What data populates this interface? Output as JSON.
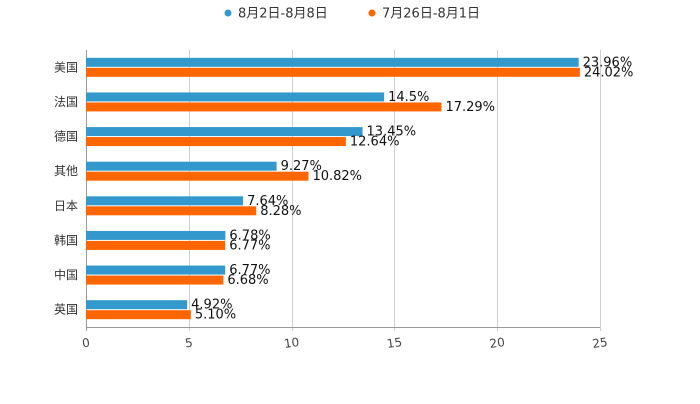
{
  "chart_data": {
    "type": "bar",
    "orientation": "horizontal",
    "title": "",
    "xlabel": "",
    "ylabel": "",
    "categories": [
      "美国",
      "法国",
      "德国",
      "其他",
      "日本",
      "韩国",
      "中国",
      "英国"
    ],
    "series": [
      {
        "name": "8月2日-8月8日",
        "color": "#3399cc",
        "values": [
          23.96,
          14.5,
          13.45,
          9.27,
          7.64,
          6.78,
          6.77,
          4.92
        ],
        "labels": [
          "23.96%",
          "14.5%",
          "13.45%",
          "9.27%",
          "7.64%",
          "6.78%",
          "6.77%",
          "4.92%"
        ]
      },
      {
        "name": "7月26日-8月1日",
        "color": "#ff6600",
        "values": [
          24.02,
          17.29,
          12.64,
          10.82,
          8.28,
          6.77,
          6.68,
          5.1
        ],
        "labels": [
          "24.02%",
          "17.29%",
          "12.64%",
          "10.82%",
          "8.28%",
          "6.77%",
          "6.68%",
          "5.10%"
        ]
      }
    ],
    "xlim": [
      0,
      25
    ],
    "xticks": [
      "0",
      "5",
      "10",
      "15",
      "20",
      "25"
    ],
    "grid": true,
    "legend": "top-center"
  }
}
